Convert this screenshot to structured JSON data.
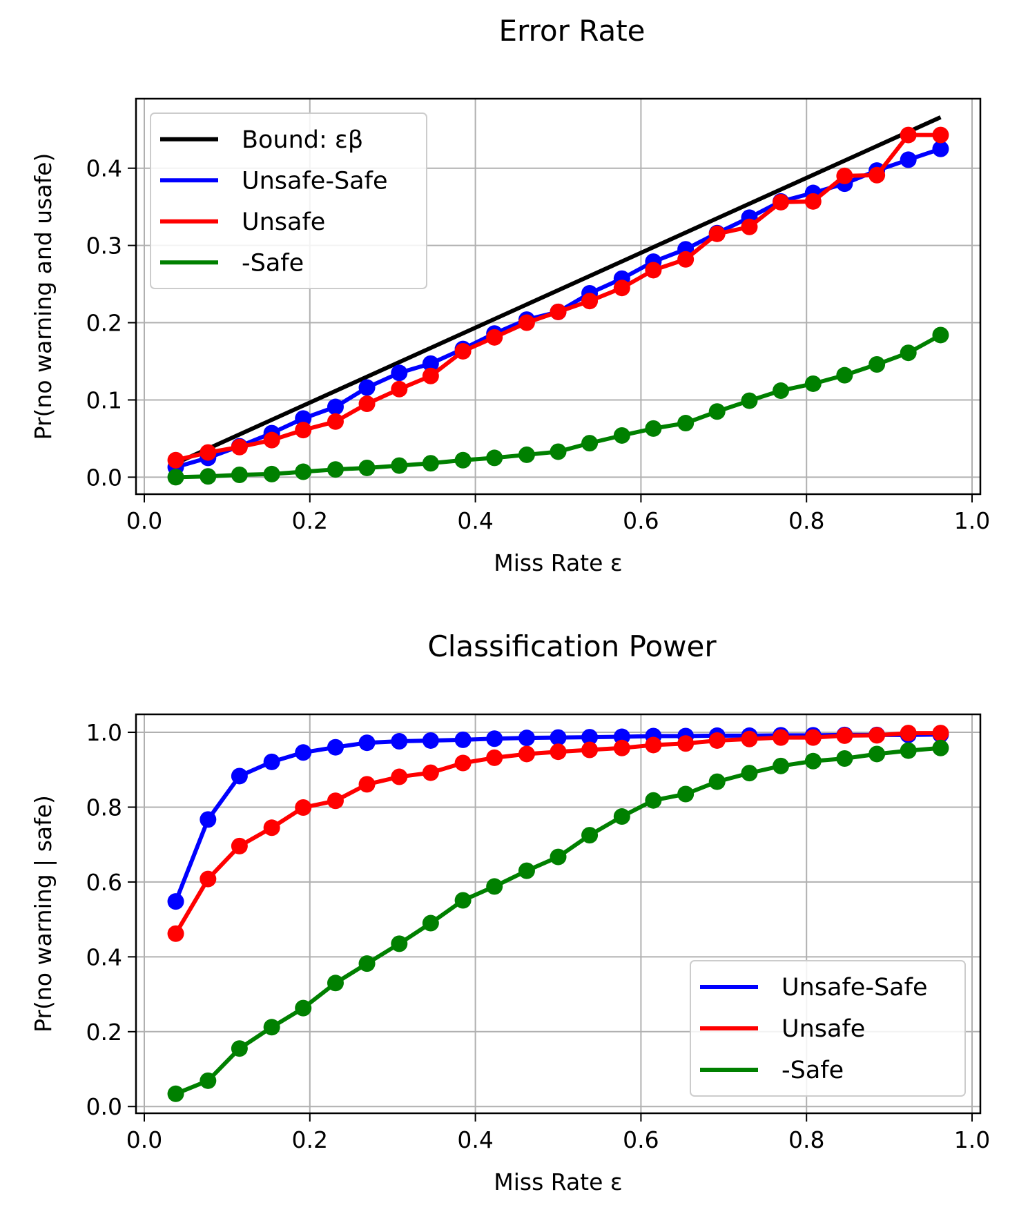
{
  "chart_data": [
    {
      "type": "line",
      "title": "Error Rate",
      "xlabel": "Miss Rate ε",
      "ylabel": "Pr(no warning and usafe)",
      "xlim": [
        -0.01,
        1.01
      ],
      "ylim": [
        -0.022,
        0.49
      ],
      "xticks": [
        0.0,
        0.2,
        0.4,
        0.6,
        0.8,
        1.0
      ],
      "xtick_labels": [
        "0.0",
        "0.2",
        "0.4",
        "0.6",
        "0.8",
        "1.0"
      ],
      "yticks": [
        0.0,
        0.1,
        0.2,
        0.3,
        0.4
      ],
      "ytick_labels": [
        "0.0",
        "0.1",
        "0.2",
        "0.3",
        "0.4"
      ],
      "grid": true,
      "legend_position": "upper-left",
      "x": [
        0.038,
        0.077,
        0.115,
        0.154,
        0.192,
        0.231,
        0.269,
        0.308,
        0.346,
        0.385,
        0.423,
        0.462,
        0.5,
        0.538,
        0.577,
        0.615,
        0.654,
        0.692,
        0.731,
        0.769,
        0.808,
        0.846,
        0.885,
        0.923,
        0.962
      ],
      "series": [
        {
          "name": "Bound: εβ",
          "color": "#000000",
          "markers": false,
          "x": [
            0.038,
            0.962
          ],
          "values": [
            0.018,
            0.466
          ]
        },
        {
          "name": "Unsafe-Safe",
          "color": "#0000ff",
          "markers": true,
          "values": [
            0.013,
            0.025,
            0.04,
            0.057,
            0.076,
            0.091,
            0.116,
            0.135,
            0.147,
            0.166,
            0.186,
            0.204,
            0.214,
            0.238,
            0.257,
            0.279,
            0.295,
            0.316,
            0.336,
            0.357,
            0.368,
            0.38,
            0.397,
            0.411,
            0.425
          ]
        },
        {
          "name": "Unsafe",
          "color": "#ff0000",
          "markers": true,
          "values": [
            0.022,
            0.032,
            0.039,
            0.048,
            0.061,
            0.072,
            0.095,
            0.114,
            0.131,
            0.163,
            0.181,
            0.2,
            0.214,
            0.228,
            0.245,
            0.268,
            0.282,
            0.315,
            0.324,
            0.356,
            0.357,
            0.39,
            0.391,
            0.443,
            0.443
          ]
        },
        {
          "name": "-Safe",
          "color": "#008000",
          "markers": true,
          "values": [
            0.0,
            0.001,
            0.003,
            0.004,
            0.007,
            0.01,
            0.012,
            0.015,
            0.018,
            0.022,
            0.025,
            0.029,
            0.033,
            0.044,
            0.054,
            0.063,
            0.07,
            0.085,
            0.099,
            0.112,
            0.121,
            0.132,
            0.146,
            0.161,
            0.184
          ]
        }
      ]
    },
    {
      "type": "line",
      "title": "Classification Power",
      "xlabel": "Miss Rate ε",
      "ylabel": "Pr(no warning | safe)",
      "xlim": [
        -0.01,
        1.01
      ],
      "ylim": [
        -0.018,
        1.048
      ],
      "xticks": [
        0.0,
        0.2,
        0.4,
        0.6,
        0.8,
        1.0
      ],
      "xtick_labels": [
        "0.0",
        "0.2",
        "0.4",
        "0.6",
        "0.8",
        "1.0"
      ],
      "yticks": [
        0.0,
        0.2,
        0.4,
        0.6,
        0.8,
        1.0
      ],
      "ytick_labels": [
        "0.0",
        "0.2",
        "0.4",
        "0.6",
        "0.8",
        "1.0"
      ],
      "grid": true,
      "legend_position": "lower-right",
      "x": [
        0.038,
        0.077,
        0.115,
        0.154,
        0.192,
        0.231,
        0.269,
        0.308,
        0.346,
        0.385,
        0.423,
        0.462,
        0.5,
        0.538,
        0.577,
        0.615,
        0.654,
        0.692,
        0.731,
        0.769,
        0.808,
        0.846,
        0.885,
        0.923,
        0.962
      ],
      "series": [
        {
          "name": "Unsafe-Safe",
          "color": "#0000ff",
          "markers": true,
          "values": [
            0.548,
            0.767,
            0.883,
            0.921,
            0.946,
            0.96,
            0.972,
            0.976,
            0.978,
            0.98,
            0.983,
            0.985,
            0.986,
            0.987,
            0.988,
            0.99,
            0.99,
            0.991,
            0.991,
            0.992,
            0.992,
            0.993,
            0.993,
            0.993,
            0.994
          ]
        },
        {
          "name": "Unsafe",
          "color": "#ff0000",
          "markers": true,
          "values": [
            0.462,
            0.608,
            0.696,
            0.745,
            0.799,
            0.817,
            0.861,
            0.881,
            0.892,
            0.918,
            0.932,
            0.942,
            0.948,
            0.953,
            0.958,
            0.966,
            0.97,
            0.978,
            0.982,
            0.986,
            0.986,
            0.991,
            0.992,
            0.998,
            0.998
          ]
        },
        {
          "name": "-Safe",
          "color": "#008000",
          "markers": true,
          "values": [
            0.034,
            0.069,
            0.155,
            0.212,
            0.263,
            0.33,
            0.382,
            0.435,
            0.49,
            0.551,
            0.588,
            0.63,
            0.667,
            0.725,
            0.775,
            0.818,
            0.835,
            0.868,
            0.891,
            0.91,
            0.923,
            0.93,
            0.942,
            0.951,
            0.958
          ]
        }
      ]
    }
  ]
}
